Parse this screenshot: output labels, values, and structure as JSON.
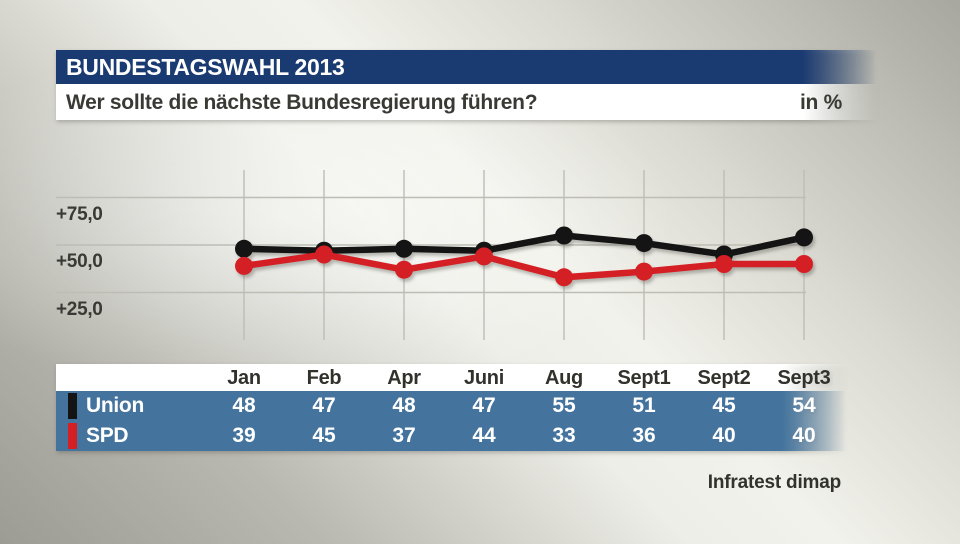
{
  "header": {
    "kicker": "BUNDESTAGSWAHL 2013",
    "title": "Wer sollte die nächste Bundesregierung führen?",
    "unit_label": "in %"
  },
  "chart_data": {
    "type": "line",
    "title": "Wer sollte die nächste Bundesregierung führen?",
    "unit": "%",
    "categories": [
      "Jan",
      "Feb",
      "Apr",
      "Juni",
      "Aug",
      "Sept1",
      "Sept2",
      "Sept3"
    ],
    "series": [
      {
        "name": "Union",
        "color": "#141414",
        "values": [
          48,
          47,
          48,
          47,
          55,
          51,
          45,
          54
        ]
      },
      {
        "name": "SPD",
        "color": "#d42025",
        "values": [
          39,
          45,
          37,
          44,
          33,
          36,
          40,
          40
        ]
      }
    ],
    "ylim": [
      0,
      90
    ],
    "yticks": [
      {
        "value": 75,
        "label": "+75,0"
      },
      {
        "value": 50,
        "label": "+50,0"
      },
      {
        "value": 25,
        "label": "+25,0"
      }
    ],
    "grid": true,
    "legend_position": "table-below-chart"
  },
  "footer": {
    "source": "Infratest dimap"
  },
  "colors": {
    "header_navy": "#1a3a72",
    "table_blue": "#44749e",
    "union_black": "#141414",
    "spd_red": "#d42025"
  }
}
